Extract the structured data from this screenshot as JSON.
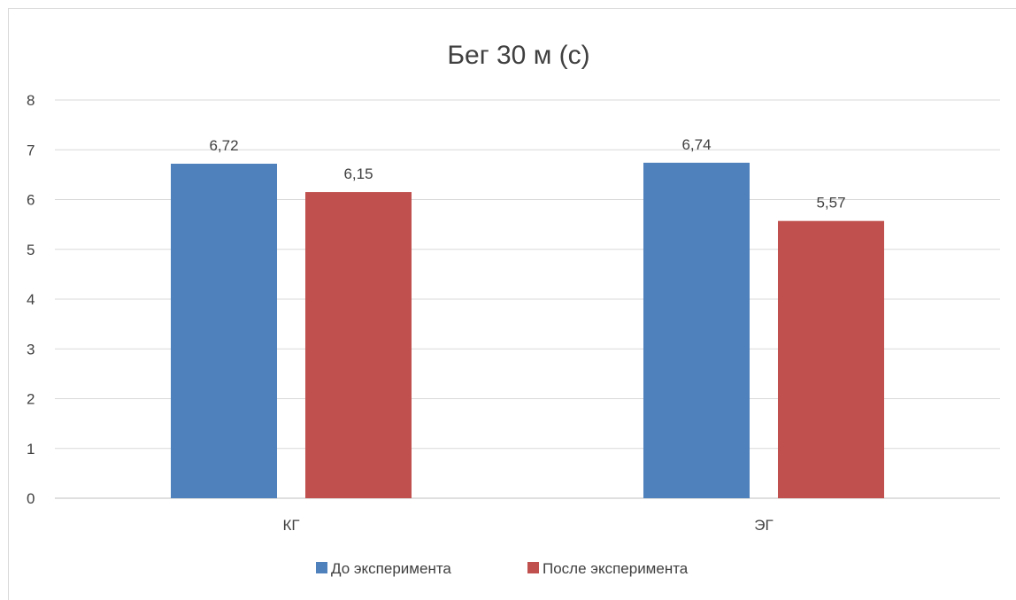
{
  "chart_data": {
    "type": "bar",
    "title": "Бег 30 м (с)",
    "categories": [
      "КГ",
      "ЭГ"
    ],
    "series": [
      {
        "name": "До эксперимента",
        "values": [
          6.72,
          6.74
        ],
        "labels": [
          "6,72",
          "6,74"
        ],
        "color": "#4f81bd"
      },
      {
        "name": "После эксперимента",
        "values": [
          6.15,
          5.57
        ],
        "labels": [
          "6,15",
          "5,57"
        ],
        "color": "#c0504d"
      }
    ],
    "yticks": [
      "0",
      "1",
      "2",
      "3",
      "4",
      "5",
      "6",
      "7",
      "8"
    ],
    "ylim": [
      0,
      8
    ],
    "grid": true,
    "legend_position": "bottom"
  }
}
